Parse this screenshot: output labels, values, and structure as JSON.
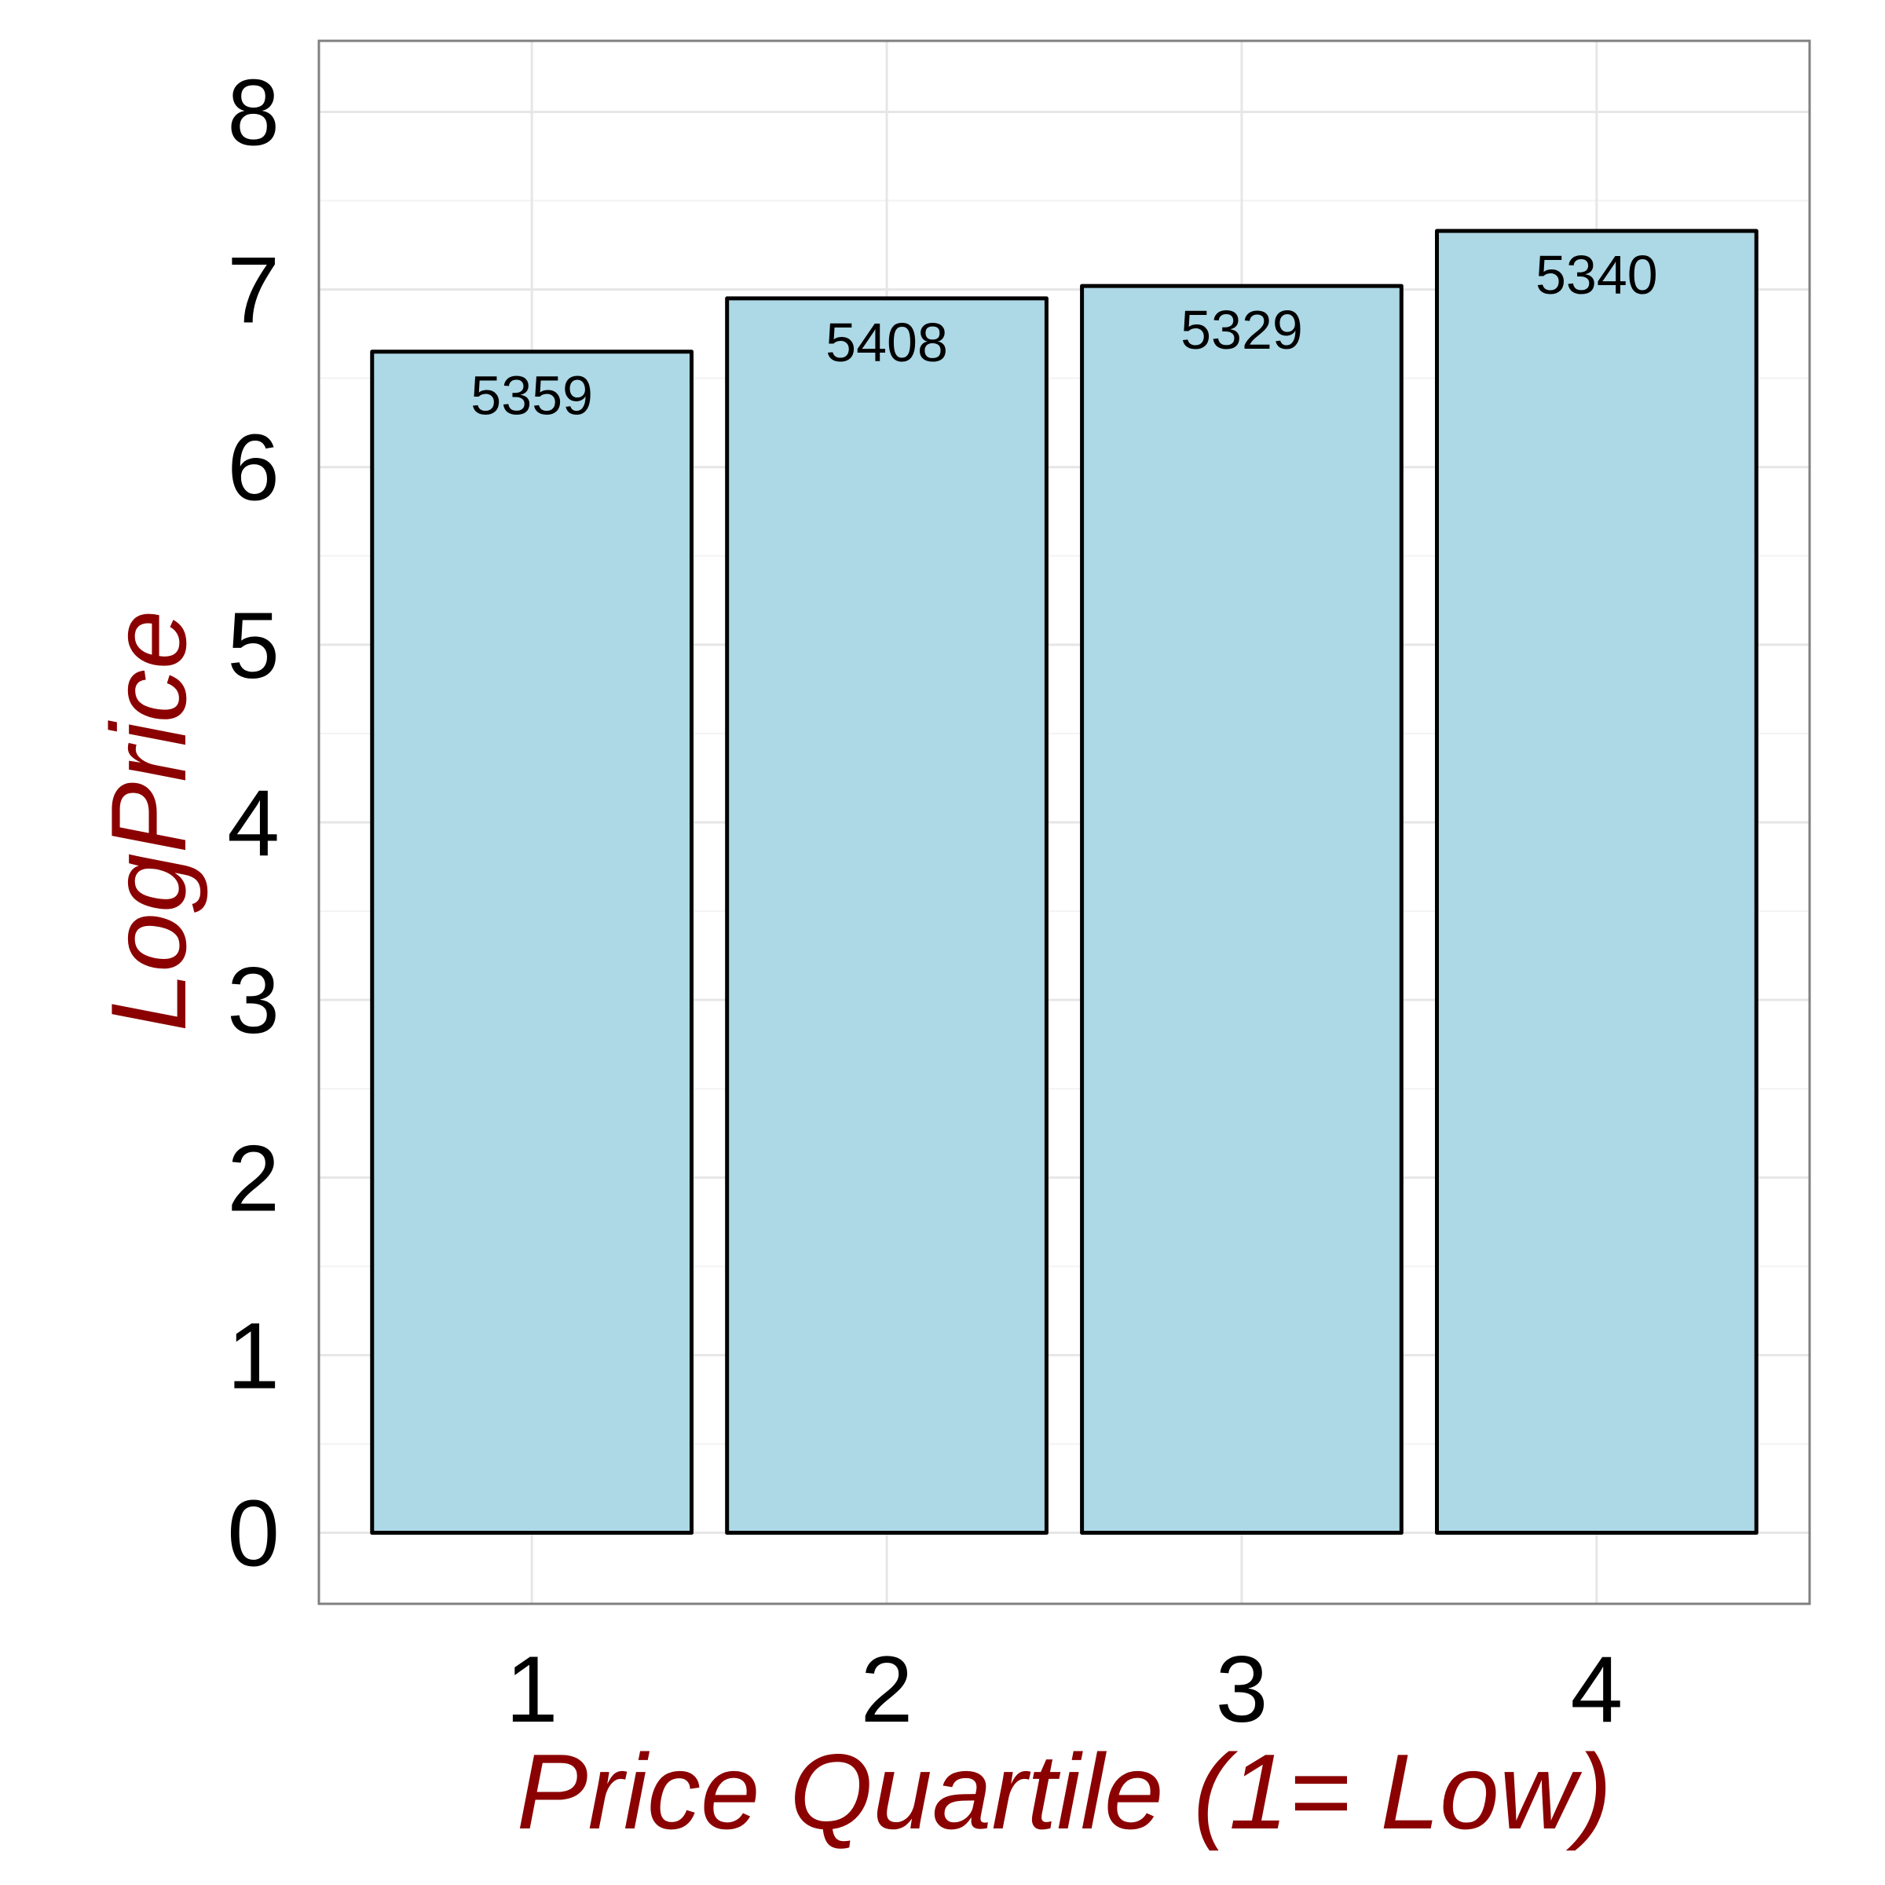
{
  "chart_data": {
    "type": "bar",
    "categories": [
      "1",
      "2",
      "3",
      "4"
    ],
    "values": [
      6.65,
      6.95,
      7.02,
      7.33
    ],
    "bar_labels": [
      "5359",
      "5408",
      "5329",
      "5340"
    ],
    "title": "",
    "xlabel": "Price Quartile (1= Low)",
    "ylabel": "LogPrice",
    "ylim": [
      -0.4,
      8.4
    ],
    "yticks": [
      "0",
      "1",
      "2",
      "3",
      "4",
      "5",
      "6",
      "7",
      "8"
    ],
    "grid": true,
    "legend": "none"
  },
  "colors": {
    "bar_fill": "#add8e6",
    "bar_stroke": "#000000",
    "axis_title": "#8b0000",
    "grid": "#e6e6e6",
    "panel_border": "#808080"
  }
}
